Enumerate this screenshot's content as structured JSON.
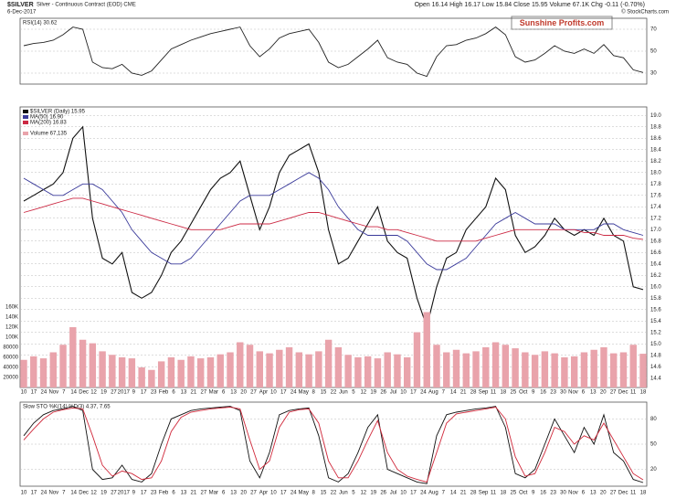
{
  "header": {
    "symbol": "$SILVER",
    "description": "Silver - Continuous Contract (EOD) CME",
    "date": "6-Dec-2017",
    "quote": "Open 16.14 High 16.17 Low 15.84 Close 15.95 Volume 67.1K Chg -0.11 (-0.70%)",
    "source": "© StockCharts.com",
    "watermark": "Sunshine Profits.com"
  },
  "x_axis": {
    "labels": [
      "10",
      "17",
      "24",
      "Nov",
      "7",
      "14",
      "Dec",
      "12",
      "19",
      "27",
      "2017",
      "9",
      "17",
      "23",
      "Feb",
      "6",
      "13",
      "21",
      "27",
      "Mar",
      "6",
      "13",
      "20",
      "27",
      "Apr",
      "10",
      "17",
      "24",
      "May",
      "8",
      "15",
      "22",
      "Jun",
      "5",
      "12",
      "19",
      "26",
      "Jul",
      "10",
      "17",
      "24",
      "Aug",
      "7",
      "14",
      "21",
      "28",
      "Sep",
      "11",
      "18",
      "25",
      "Oct",
      "9",
      "16",
      "23",
      "30",
      "Nov",
      "6",
      "13",
      "20",
      "27",
      "Dec",
      "11",
      "18"
    ]
  },
  "chart_data": [
    {
      "type": "line",
      "title": "RSI(14) 30.62",
      "ylim": [
        20,
        80
      ],
      "yticks": [
        30,
        50,
        70
      ],
      "grid": true,
      "series": [
        {
          "color": "#222222",
          "values": [
            55,
            57,
            58,
            60,
            65,
            72,
            70,
            40,
            35,
            34,
            38,
            30,
            28,
            32,
            42,
            52,
            56,
            60,
            63,
            66,
            68,
            70,
            72,
            55,
            45,
            52,
            62,
            66,
            68,
            70,
            58,
            40,
            35,
            38,
            45,
            52,
            60,
            44,
            40,
            38,
            30,
            27,
            45,
            55,
            56,
            60,
            62,
            66,
            72,
            65,
            45,
            40,
            42,
            48,
            55,
            50,
            48,
            52,
            48,
            56,
            46,
            44,
            33,
            30.62
          ]
        }
      ]
    },
    {
      "type": "line",
      "ylim": [
        14.3,
        19.1
      ],
      "grid": true,
      "yticks": [
        {
          "value": 19,
          "label": "19.0"
        },
        18.8,
        18.6,
        18.4,
        18.2,
        {
          "value": 18,
          "label": "18.0"
        },
        17.8,
        17.6,
        17.4,
        17.2,
        {
          "value": 17,
          "label": "17.0"
        },
        16.8,
        16.6,
        16.4,
        16.2,
        {
          "value": 16,
          "label": "16.0"
        },
        15.8,
        15.6,
        15.4,
        15.2,
        {
          "value": 15,
          "label": "15.0"
        },
        14.8,
        14.6,
        14.4
      ],
      "series": [
        {
          "name": "$SILVER (Daily) 15.95",
          "color": "#111111",
          "values": [
            17.5,
            17.6,
            17.7,
            17.8,
            18.0,
            18.6,
            18.8,
            17.2,
            16.5,
            16.4,
            16.6,
            15.9,
            15.8,
            15.9,
            16.2,
            16.6,
            16.8,
            17.1,
            17.4,
            17.7,
            17.9,
            18.0,
            18.2,
            17.6,
            17.0,
            17.4,
            18.0,
            18.3,
            18.4,
            18.5,
            18.0,
            17.0,
            16.4,
            16.5,
            16.8,
            17.1,
            17.4,
            16.8,
            16.6,
            16.5,
            15.8,
            15.3,
            16.0,
            16.5,
            16.6,
            17.0,
            17.2,
            17.4,
            17.9,
            17.7,
            16.9,
            16.6,
            16.7,
            16.9,
            17.2,
            17.0,
            16.9,
            17.0,
            16.9,
            17.2,
            16.9,
            16.8,
            16.0,
            15.95
          ]
        },
        {
          "name": "MA(50) 16.90",
          "color": "#3a3a9a",
          "values": [
            17.9,
            17.8,
            17.7,
            17.6,
            17.6,
            17.7,
            17.8,
            17.8,
            17.7,
            17.5,
            17.3,
            17.0,
            16.8,
            16.6,
            16.5,
            16.4,
            16.4,
            16.5,
            16.7,
            16.9,
            17.1,
            17.3,
            17.5,
            17.6,
            17.6,
            17.6,
            17.7,
            17.8,
            17.9,
            18.0,
            17.9,
            17.7,
            17.4,
            17.2,
            17.0,
            16.9,
            16.9,
            16.9,
            16.9,
            16.8,
            16.6,
            16.4,
            16.3,
            16.3,
            16.4,
            16.5,
            16.7,
            16.9,
            17.1,
            17.2,
            17.3,
            17.2,
            17.1,
            17.1,
            17.1,
            17.0,
            17.0,
            17.0,
            17.0,
            17.1,
            17.1,
            17.0,
            16.95,
            16.9
          ]
        },
        {
          "name": "MA(200) 16.83",
          "color": "#cc2a44",
          "values": [
            17.3,
            17.35,
            17.4,
            17.45,
            17.5,
            17.55,
            17.55,
            17.5,
            17.45,
            17.4,
            17.35,
            17.3,
            17.25,
            17.2,
            17.15,
            17.1,
            17.05,
            17.0,
            17.0,
            17.0,
            17.0,
            17.05,
            17.1,
            17.1,
            17.1,
            17.1,
            17.15,
            17.2,
            17.25,
            17.3,
            17.3,
            17.25,
            17.2,
            17.15,
            17.1,
            17.05,
            17.05,
            17.0,
            17.0,
            16.95,
            16.9,
            16.85,
            16.8,
            16.8,
            16.8,
            16.8,
            16.8,
            16.85,
            16.9,
            16.95,
            17.0,
            17.0,
            17.0,
            17.0,
            17.0,
            17.0,
            17.0,
            16.95,
            16.95,
            16.9,
            16.9,
            16.9,
            16.85,
            16.83
          ]
        }
      ]
    },
    {
      "type": "bar",
      "ylim": [
        0,
        180000
      ],
      "yticks": [
        20000,
        40000,
        60000,
        80000,
        {
          "value": 100000,
          "label": "100K"
        },
        {
          "value": 120000,
          "label": "120K"
        },
        {
          "value": 140000,
          "label": "140K"
        },
        {
          "value": 160000,
          "label": "160K"
        }
      ],
      "series": [
        {
          "name": "Volume 67,135",
          "color": "#e9a3ab",
          "values": [
            55000,
            62000,
            58000,
            70000,
            85000,
            120000,
            95000,
            88000,
            72000,
            65000,
            60000,
            58000,
            40000,
            35000,
            52000,
            60000,
            55000,
            62000,
            58000,
            60000,
            66000,
            70000,
            90000,
            85000,
            72000,
            68000,
            75000,
            80000,
            70000,
            66000,
            72000,
            95000,
            80000,
            65000,
            60000,
            62000,
            58000,
            70000,
            66000,
            60000,
            110000,
            150000,
            85000,
            70000,
            75000,
            68000,
            72000,
            80000,
            90000,
            85000,
            78000,
            70000,
            65000,
            72000,
            68000,
            60000,
            62000,
            70000,
            75000,
            80000,
            68000,
            70000,
            85000,
            67135
          ]
        }
      ]
    },
    {
      "type": "line",
      "title": "Slow STO %K(14) %D(3) 4.37, 7.65",
      "ylim": [
        0,
        100
      ],
      "yticks": [
        20,
        50,
        80
      ],
      "grid": true,
      "series": [
        {
          "color": "#111111",
          "values": [
            60,
            75,
            85,
            90,
            92,
            95,
            90,
            20,
            8,
            10,
            25,
            8,
            5,
            15,
            50,
            80,
            85,
            90,
            92,
            93,
            94,
            95,
            90,
            30,
            10,
            40,
            85,
            90,
            92,
            93,
            60,
            10,
            5,
            15,
            40,
            70,
            85,
            20,
            15,
            10,
            5,
            3,
            60,
            85,
            88,
            90,
            92,
            93,
            95,
            70,
            15,
            10,
            20,
            50,
            80,
            60,
            40,
            70,
            50,
            85,
            40,
            30,
            8,
            4.37
          ]
        },
        {
          "color": "#d0283a",
          "values": [
            55,
            68,
            80,
            88,
            91,
            93,
            92,
            60,
            25,
            12,
            18,
            15,
            8,
            10,
            30,
            65,
            82,
            88,
            90,
            92,
            93,
            94,
            92,
            55,
            20,
            30,
            70,
            88,
            91,
            92,
            75,
            30,
            10,
            10,
            30,
            55,
            78,
            40,
            20,
            12,
            8,
            5,
            40,
            75,
            86,
            88,
            90,
            92,
            94,
            80,
            35,
            12,
            15,
            40,
            70,
            65,
            50,
            60,
            55,
            75,
            55,
            35,
            15,
            7.65
          ]
        }
      ]
    }
  ]
}
